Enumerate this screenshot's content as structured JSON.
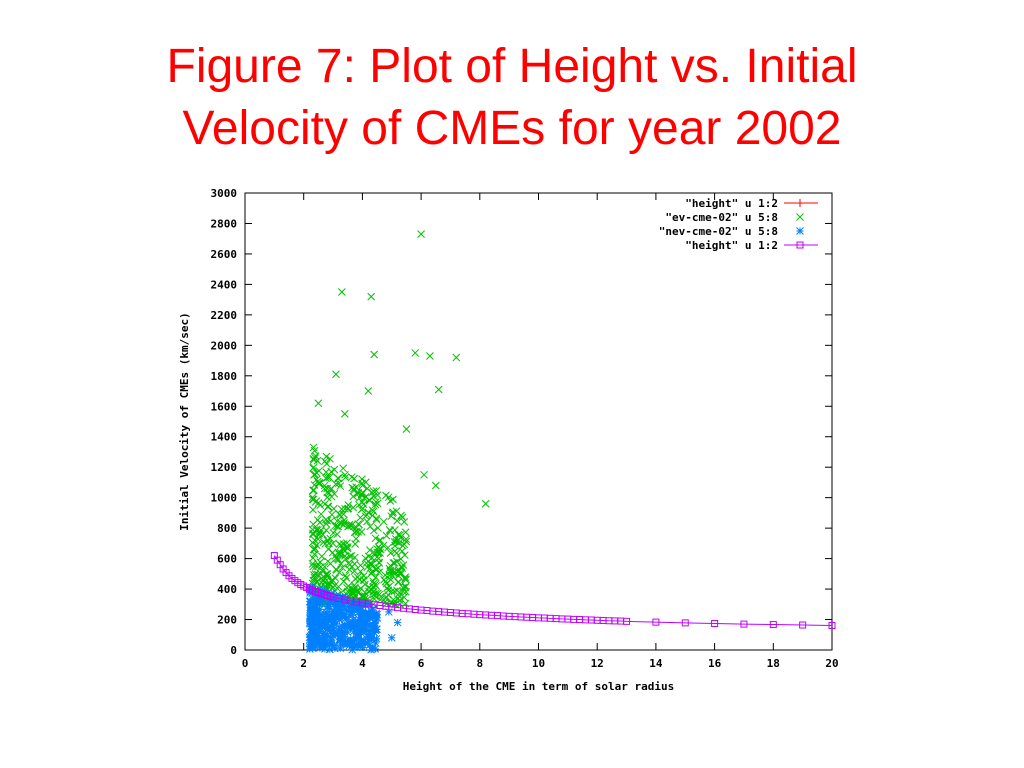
{
  "slide": {
    "title_line1": "Figure 7: Plot of Height vs. Initial",
    "title_line2": "Velocity of CMEs for year 2002"
  },
  "colors": {
    "title": "#ff0000",
    "height_line": "#ff0000",
    "ev_cme": "#00c000",
    "nev_cme": "#0080ff",
    "height_fit": "#c000ff"
  },
  "chart_data": {
    "type": "scatter",
    "xlabel": "Height of the CME in term of solar radius",
    "ylabel": "Initial Velocity of CMEs (km/sec)",
    "xlim": [
      0,
      20
    ],
    "ylim": [
      0,
      3000
    ],
    "xticks": [
      0,
      2,
      4,
      6,
      8,
      10,
      12,
      14,
      16,
      18,
      20
    ],
    "yticks": [
      0,
      200,
      400,
      600,
      800,
      1000,
      1200,
      1400,
      1600,
      1800,
      2000,
      2200,
      2400,
      2600,
      2800,
      3000
    ],
    "grid": false,
    "legend_position": "top-right",
    "legend": [
      {
        "label": "\"height\" u 1:2",
        "color": "#ff0000",
        "marker": "plus",
        "line": true
      },
      {
        "label": "\"ev-cme-02\" u 5:8",
        "color": "#00c000",
        "marker": "x",
        "line": false
      },
      {
        "label": "\"nev-cme-02\" u 5:8",
        "color": "#0080ff",
        "marker": "star",
        "line": false
      },
      {
        "label": "\"height\" u 1:2",
        "color": "#c000ff",
        "marker": "square",
        "line": true
      }
    ],
    "series": [
      {
        "name": "\"height\" u 1:2",
        "style": "line-square",
        "color": "#c000ff",
        "x": [
          1.0,
          1.1,
          1.2,
          1.3,
          1.4,
          1.5,
          1.6,
          1.7,
          1.8,
          1.9,
          2.0,
          2.1,
          2.2,
          2.3,
          2.4,
          2.5,
          2.6,
          2.7,
          2.8,
          2.9,
          3.0,
          3.2,
          3.4,
          3.6,
          3.8,
          4.0,
          4.2,
          4.4,
          4.6,
          4.8,
          5.0,
          5.2,
          5.4,
          5.6,
          5.8,
          6.0,
          6.2,
          6.4,
          6.6,
          6.8,
          7.0,
          7.2,
          7.4,
          7.6,
          7.8,
          8.0,
          8.2,
          8.4,
          8.6,
          8.8,
          9.0,
          9.2,
          9.4,
          9.6,
          9.8,
          10.0,
          10.2,
          10.4,
          10.6,
          10.8,
          11.0,
          11.2,
          11.4,
          11.6,
          11.8,
          12.0,
          12.2,
          12.4,
          12.6,
          12.8,
          13.0,
          14.0,
          15.0,
          16.0,
          17.0,
          18.0,
          19.0,
          20.0
        ],
        "y": [
          620,
          590,
          560,
          532,
          508,
          487,
          470,
          455,
          442,
          430,
          420,
          410,
          400,
          392,
          384,
          377,
          370,
          364,
          358,
          352,
          347,
          338,
          330,
          322,
          315,
          309,
          303,
          297,
          292,
          287,
          283,
          278,
          274,
          270,
          266,
          262,
          259,
          255,
          252,
          249,
          246,
          243,
          240,
          238,
          235,
          232,
          230,
          228,
          226,
          223,
          221,
          219,
          217,
          215,
          213,
          211,
          210,
          208,
          206,
          204,
          203,
          201,
          200,
          198,
          197,
          195,
          194,
          192,
          191,
          190,
          188,
          183,
          178,
          174,
          170,
          167,
          164,
          161
        ]
      }
    ],
    "scatter_clusters": [
      {
        "name": "\"ev-cme-02\" u 5:8",
        "color": "#00c000",
        "marker": "x",
        "outliers": [
          [
            6.0,
            2730
          ],
          [
            3.3,
            2350
          ],
          [
            4.3,
            2320
          ],
          [
            4.4,
            1940
          ],
          [
            5.8,
            1950
          ],
          [
            6.3,
            1930
          ],
          [
            7.2,
            1920
          ],
          [
            3.1,
            1810
          ],
          [
            4.2,
            1700
          ],
          [
            6.6,
            1710
          ],
          [
            2.5,
            1620
          ],
          [
            3.4,
            1550
          ],
          [
            5.5,
            1450
          ],
          [
            8.2,
            960
          ],
          [
            6.1,
            1150
          ],
          [
            6.5,
            1080
          ]
        ]
      },
      {
        "name": "\"nev-cme-02\" u 5:8",
        "color": "#0080ff",
        "marker": "star",
        "outliers": [
          [
            5.0,
            80
          ],
          [
            5.2,
            180
          ],
          [
            4.9,
            250
          ],
          [
            4.5,
            210
          ],
          [
            3.8,
            70
          ]
        ]
      }
    ]
  }
}
